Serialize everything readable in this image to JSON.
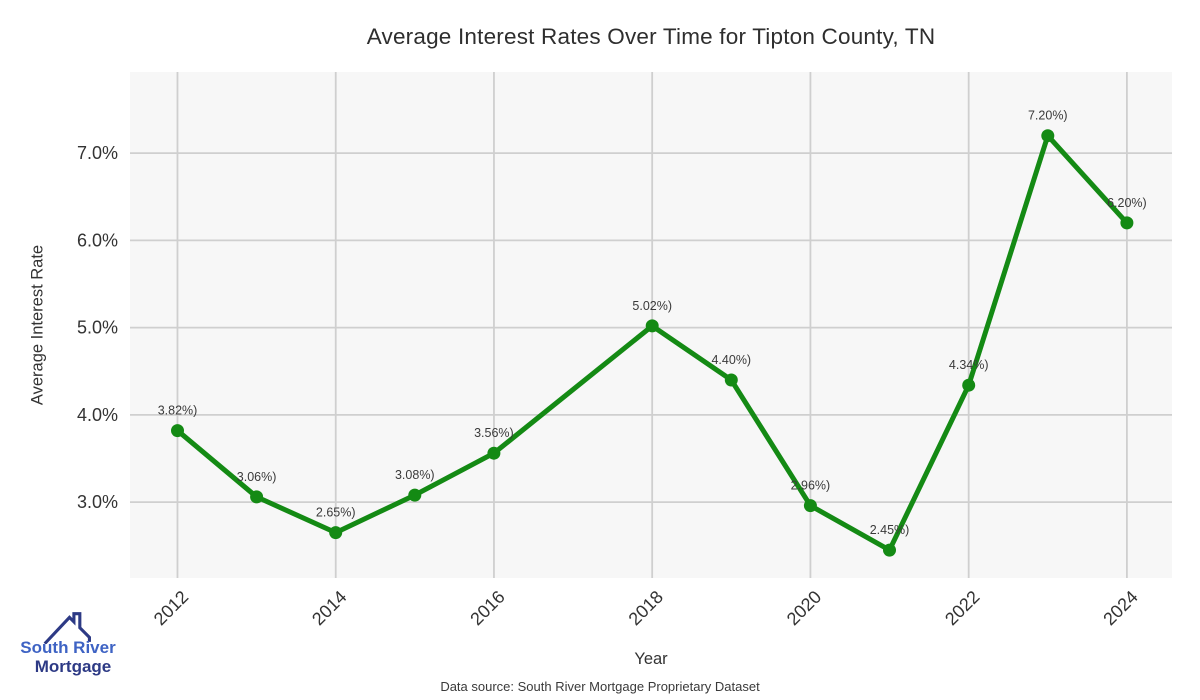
{
  "title": "Average Interest Rates Over Time for Tipton County, TN",
  "axes": {
    "xlabel": "Year",
    "ylabel": "Average Interest Rate"
  },
  "footer": {
    "source": "Data source: South River Mortgage Proprietary Dataset"
  },
  "logo": {
    "icon": "house-roof-icon",
    "name1": "South River",
    "name2": "Mortgage",
    "color1": "#3e63c4",
    "color2": "#2d3a85"
  },
  "chart_data": {
    "type": "line",
    "title": "Average Interest Rates Over Time for Tipton County, TN",
    "xlabel": "Year",
    "ylabel": "Average Interest Rate",
    "x": [
      2012,
      2013,
      2014,
      2015,
      2016,
      2018,
      2019,
      2020,
      2021,
      2022,
      2023,
      2024
    ],
    "values": [
      3.82,
      3.06,
      2.65,
      3.08,
      3.56,
      5.02,
      4.4,
      2.96,
      2.45,
      4.34,
      7.2,
      6.2
    ],
    "point_labels": [
      "3.82%)",
      "3.06%)",
      "2.65%)",
      "3.08%)",
      "3.56%)",
      "5.02%)",
      "4.40%)",
      "2.96%)",
      "2.45%)",
      "4.34%)",
      "7.20%)",
      "6.20%)"
    ],
    "x_ticks": [
      2012,
      2014,
      2016,
      2018,
      2020,
      2022,
      2024
    ],
    "y_ticks": [
      {
        "value": 3,
        "label": "3.0%"
      },
      {
        "value": 4,
        "label": "4.0%"
      },
      {
        "value": 5,
        "label": "5.0%"
      },
      {
        "value": 6,
        "label": "6.0%"
      },
      {
        "value": 7,
        "label": "7.0%"
      }
    ],
    "xlim": [
      2011.4,
      2024.57
    ],
    "ylim": [
      2.13,
      7.93
    ],
    "grid": true,
    "legend": "none",
    "line_color": "#148a14",
    "panel_bg": "#f7f7f7",
    "grid_color": "#cfcfcf",
    "tick_color": "#333333",
    "label_color": "#3a3a3a"
  }
}
